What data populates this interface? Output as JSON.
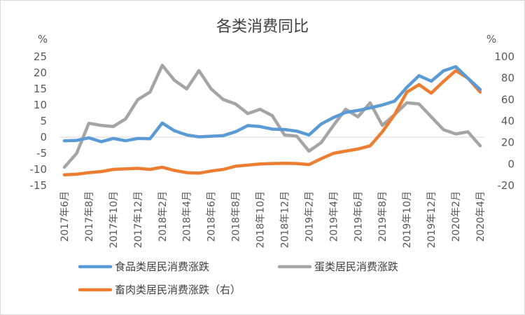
{
  "chart_data": {
    "type": "line",
    "title": "各类消费同比",
    "y_left_unit": "%",
    "y_right_unit": "%",
    "y_left_lim": [
      -15,
      25
    ],
    "y_left_ticks": [
      25,
      20,
      15,
      10,
      5,
      0,
      -5,
      -10,
      -15
    ],
    "y_right_lim": [
      -20,
      100
    ],
    "y_right_ticks": [
      100,
      80,
      60,
      40,
      20,
      0,
      -20
    ],
    "x": [
      "2017年6月",
      "2017年7月",
      "2017年8月",
      "2017年9月",
      "2017年10月",
      "2017年11月",
      "2017年12月",
      "2018年1月",
      "2018年2月",
      "2018年3月",
      "2018年4月",
      "2018年5月",
      "2018年6月",
      "2018年7月",
      "2018年8月",
      "2018年9月",
      "2018年10月",
      "2018年11月",
      "2018年12月",
      "2019年1月",
      "2019年2月",
      "2019年3月",
      "2019年4月",
      "2019年5月",
      "2019年6月",
      "2019年7月",
      "2019年8月",
      "2019年9月",
      "2019年10月",
      "2019年11月",
      "2019年12月",
      "2020年1月",
      "2020年2月",
      "2020年3月",
      "2020年4月"
    ],
    "x_tick_labels": [
      "2017年6月",
      "2017年8月",
      "2017年10月",
      "2017年12月",
      "2018年2月",
      "2018年4月",
      "2018年6月",
      "2018年8月",
      "2018年10月",
      "2018年12月",
      "2019年2月",
      "2019年4月",
      "2019年6月",
      "2019年8月",
      "2019年10月",
      "2019年12月",
      "2020年2月",
      "2020年4月"
    ],
    "grid": false,
    "series": [
      {
        "name": "食品类居民消费涨跌",
        "axis": "left",
        "color": "#5b9bd5",
        "values": [
          -1.1,
          -1.0,
          -0.2,
          -1.4,
          -0.4,
          -1.1,
          -0.4,
          -0.5,
          4.4,
          2.0,
          0.7,
          0.1,
          0.3,
          0.5,
          1.7,
          3.6,
          3.3,
          2.5,
          2.4,
          1.9,
          0.7,
          4.1,
          6.1,
          7.7,
          8.3,
          9.1,
          10.0,
          11.2,
          15.5,
          19.1,
          17.4,
          20.6,
          21.9,
          18.3,
          14.8
        ]
      },
      {
        "name": "蛋类居民消费涨跌",
        "axis": "right",
        "color": "#a5a5a5",
        "values": [
          -3,
          10,
          38,
          36,
          35,
          42,
          60,
          67,
          92,
          78,
          70,
          87,
          70,
          60,
          56,
          47,
          51,
          45,
          27,
          26,
          12,
          20,
          36,
          51,
          44,
          57,
          36,
          46,
          57,
          56,
          44,
          32,
          28,
          30,
          17
        ]
      },
      {
        "name": "畜肉类居民消费涨跌（右）",
        "axis": "right",
        "color": "#ed7d31",
        "values": [
          -10,
          -9.5,
          -8,
          -7,
          -5,
          -4.5,
          -4,
          -5,
          -3,
          -6,
          -8,
          -8.5,
          -6.5,
          -5,
          -2,
          -1,
          0,
          0.5,
          0.7,
          0.5,
          -0.5,
          5,
          10,
          12,
          14,
          17,
          30,
          46,
          67,
          74,
          66,
          77,
          87,
          80,
          67
        ]
      }
    ]
  }
}
